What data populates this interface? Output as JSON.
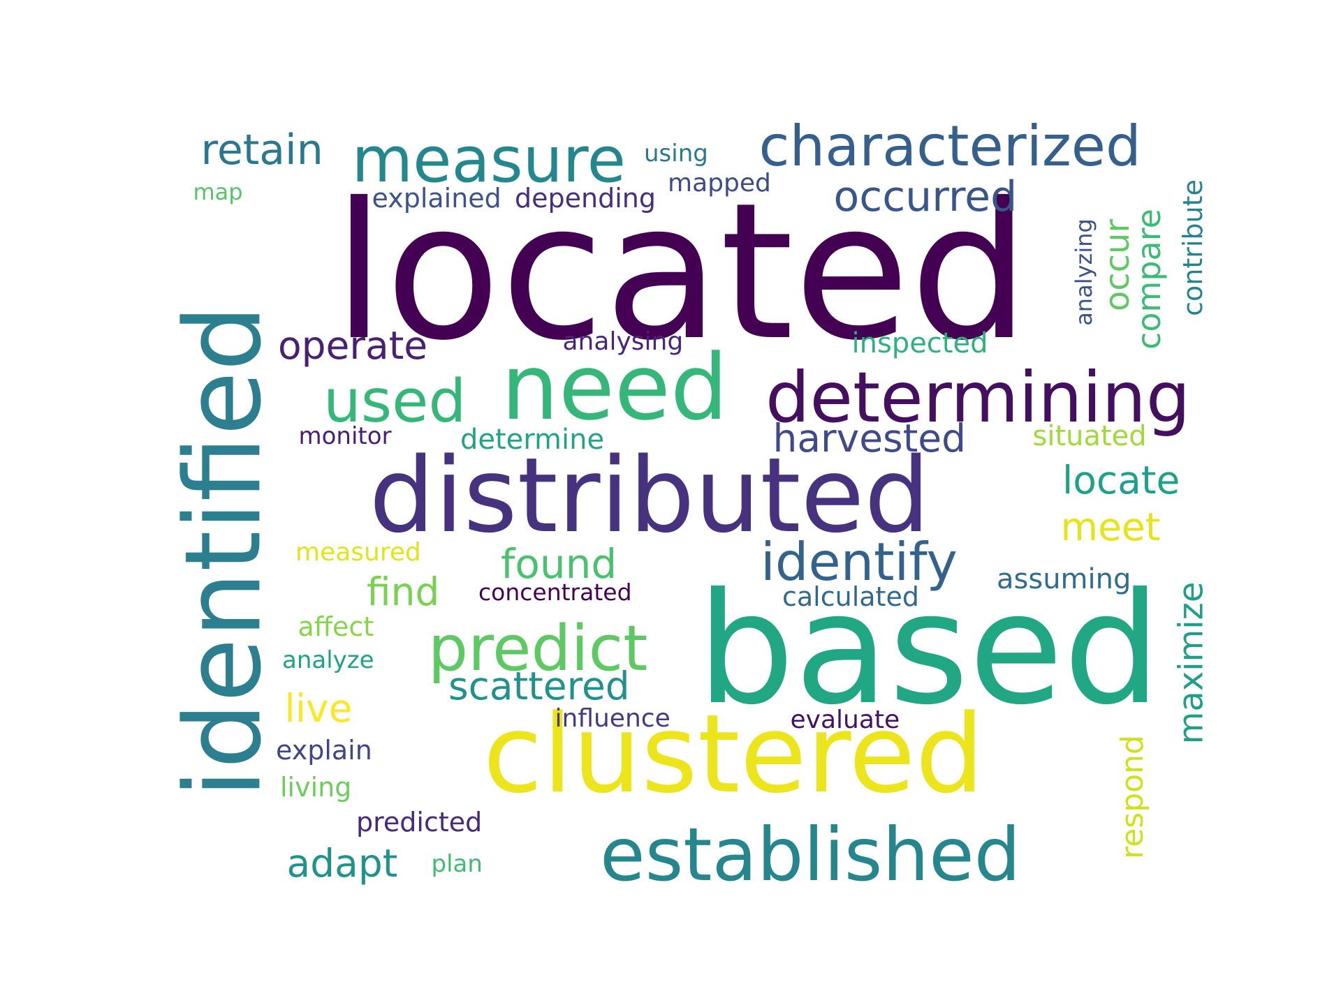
{
  "words": [
    {
      "text": "located",
      "color": "#440154"
    },
    {
      "text": "based",
      "color": "#22a784"
    },
    {
      "text": "identified",
      "color": "#2c7f8e"
    },
    {
      "text": "distributed",
      "color": "#46327e"
    },
    {
      "text": "clustered",
      "color": "#ede51b"
    },
    {
      "text": "need",
      "color": "#35b779"
    },
    {
      "text": "established",
      "color": "#25878d"
    },
    {
      "text": "determining",
      "color": "#440f5f"
    },
    {
      "text": "measure",
      "color": "#23878e"
    },
    {
      "text": "characterized",
      "color": "#35608d"
    },
    {
      "text": "predict",
      "color": "#5ec962"
    },
    {
      "text": "used",
      "color": "#35b779"
    },
    {
      "text": "identify",
      "color": "#33638d"
    },
    {
      "text": "occurred",
      "color": "#39568c"
    },
    {
      "text": "retain",
      "color": "#2a788e"
    },
    {
      "text": "operate",
      "color": "#482173"
    },
    {
      "text": "harvested",
      "color": "#3e4a89"
    },
    {
      "text": "scattered",
      "color": "#21918c"
    },
    {
      "text": "found",
      "color": "#4ac16d"
    },
    {
      "text": "locate",
      "color": "#1fa088"
    },
    {
      "text": "meet",
      "color": "#e5e419"
    },
    {
      "text": "adapt",
      "color": "#21918c"
    },
    {
      "text": "find",
      "color": "#7ad151"
    },
    {
      "text": "live",
      "color": "#fde725"
    },
    {
      "text": "maximize",
      "color": "#1f9e89"
    },
    {
      "text": "respond",
      "color": "#d0e11c"
    },
    {
      "text": "occur",
      "color": "#5ec962"
    },
    {
      "text": "compare",
      "color": "#3bbb75"
    },
    {
      "text": "contribute",
      "color": "#26828e"
    },
    {
      "text": "analyzing",
      "color": "#3b528b"
    },
    {
      "text": "inspected",
      "color": "#2db27d"
    },
    {
      "text": "situated",
      "color": "#a0da39"
    },
    {
      "text": "determine",
      "color": "#20a386"
    },
    {
      "text": "assuming",
      "color": "#2f6c8e"
    },
    {
      "text": "calculated",
      "color": "#31688e"
    },
    {
      "text": "concentrated",
      "color": "#440154"
    },
    {
      "text": "influence",
      "color": "#443983"
    },
    {
      "text": "evaluate",
      "color": "#471063"
    },
    {
      "text": "affect",
      "color": "#86d549"
    },
    {
      "text": "analyze",
      "color": "#1fa188"
    },
    {
      "text": "explain",
      "color": "#414487"
    },
    {
      "text": "living",
      "color": "#6ccd5a"
    },
    {
      "text": "predicted",
      "color": "#482878"
    },
    {
      "text": "plan",
      "color": "#3fbc73"
    },
    {
      "text": "measured",
      "color": "#e2e418"
    },
    {
      "text": "monitor",
      "color": "#481f70"
    },
    {
      "text": "analysing",
      "color": "#482576"
    },
    {
      "text": "explained",
      "color": "#3b528b"
    },
    {
      "text": "depending",
      "color": "#472d7b"
    },
    {
      "text": "mapped",
      "color": "#3e4989"
    },
    {
      "text": "using",
      "color": "#2a788e"
    },
    {
      "text": "map",
      "color": "#54c568"
    }
  ]
}
